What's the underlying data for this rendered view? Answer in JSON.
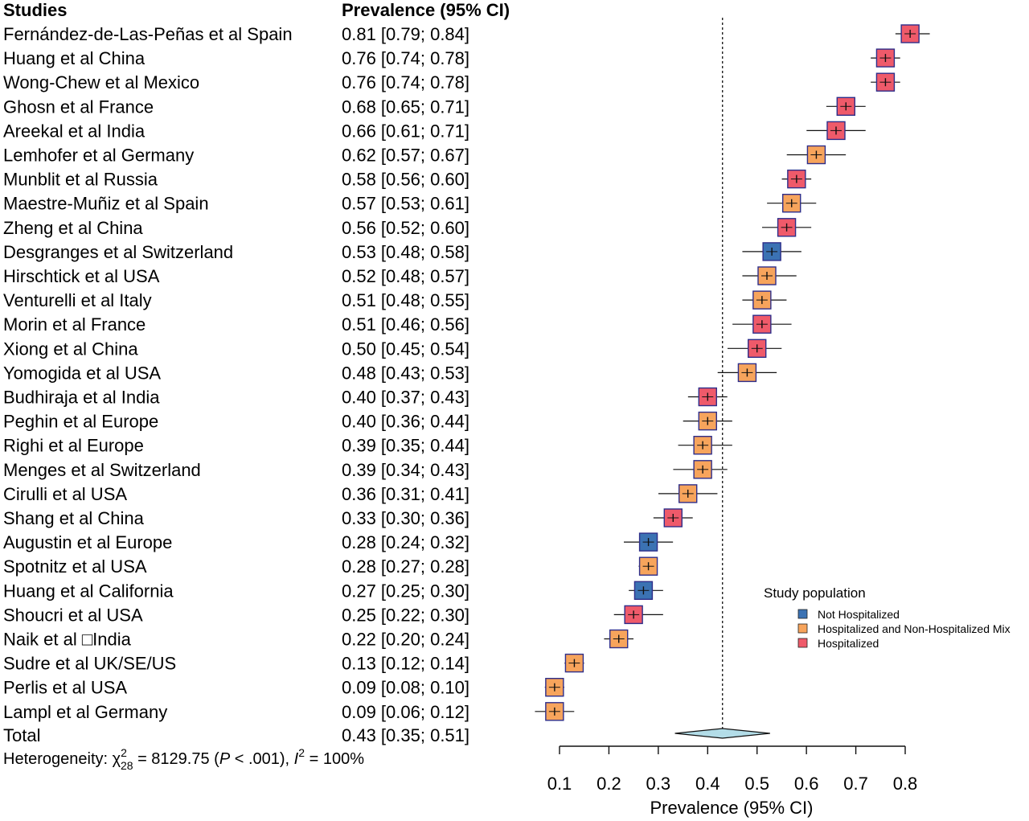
{
  "chart_data": {
    "type": "forest",
    "header": {
      "studies": "Studies",
      "estimate": "Prevalence (95% CI)"
    },
    "xlabel": "Prevalence (95% CI)",
    "xlim": [
      0.1,
      0.8
    ],
    "xticks": [
      "0.1",
      "0.2",
      "0.3",
      "0.4",
      "0.5",
      "0.6",
      "0.7",
      "0.8"
    ],
    "reference_line": 0.43,
    "legend": {
      "title": "Study population",
      "placement": "right",
      "items": [
        {
          "label": "Not Hospitalized",
          "color": "#3b72b3"
        },
        {
          "label": "Hospitalized and Non-Hospitalized Mix",
          "color": "#f7a45c"
        },
        {
          "label": "Hospitalized",
          "color": "#ef5a6a"
        }
      ]
    },
    "studies": [
      {
        "label": "Fernández-de-Las-Peñas et al Spain",
        "ci_text": "0.81 [0.79; 0.84]",
        "est": 0.81,
        "lo": 0.79,
        "hi": 0.84,
        "group": "Hospitalized"
      },
      {
        "label": "Huang et al China",
        "ci_text": "0.76 [0.74; 0.78]",
        "est": 0.76,
        "lo": 0.74,
        "hi": 0.78,
        "group": "Hospitalized"
      },
      {
        "label": "Wong-Chew et al Mexico",
        "ci_text": "0.76 [0.74; 0.78]",
        "est": 0.76,
        "lo": 0.74,
        "hi": 0.78,
        "group": "Hospitalized"
      },
      {
        "label": "Ghosn et al France",
        "ci_text": "0.68 [0.65; 0.71]",
        "est": 0.68,
        "lo": 0.65,
        "hi": 0.71,
        "group": "Hospitalized"
      },
      {
        "label": "Areekal et al India",
        "ci_text": "0.66 [0.61; 0.71]",
        "est": 0.66,
        "lo": 0.61,
        "hi": 0.71,
        "group": "Hospitalized"
      },
      {
        "label": "Lemhofer et al Germany",
        "ci_text": "0.62 [0.57; 0.67]",
        "est": 0.62,
        "lo": 0.57,
        "hi": 0.67,
        "group": "Hospitalized and Non-Hospitalized Mix"
      },
      {
        "label": "Munblit et al Russia",
        "ci_text": "0.58 [0.56; 0.60]",
        "est": 0.58,
        "lo": 0.56,
        "hi": 0.6,
        "group": "Hospitalized"
      },
      {
        "label": "Maestre-Muñiz et al Spain",
        "ci_text": "0.57 [0.53; 0.61]",
        "est": 0.57,
        "lo": 0.53,
        "hi": 0.61,
        "group": "Hospitalized and Non-Hospitalized Mix"
      },
      {
        "label": "Zheng et al China",
        "ci_text": "0.56 [0.52; 0.60]",
        "est": 0.56,
        "lo": 0.52,
        "hi": 0.6,
        "group": "Hospitalized"
      },
      {
        "label": "Desgranges et al Switzerland",
        "ci_text": "0.53 [0.48; 0.58]",
        "est": 0.53,
        "lo": 0.48,
        "hi": 0.58,
        "group": "Not Hospitalized"
      },
      {
        "label": "Hirschtick et al USA",
        "ci_text": "0.52 [0.48; 0.57]",
        "est": 0.52,
        "lo": 0.48,
        "hi": 0.57,
        "group": "Hospitalized and Non-Hospitalized Mix"
      },
      {
        "label": "Venturelli et al Italy",
        "ci_text": "0.51 [0.48; 0.55]",
        "est": 0.51,
        "lo": 0.48,
        "hi": 0.55,
        "group": "Hospitalized and Non-Hospitalized Mix"
      },
      {
        "label": "Morin et al France",
        "ci_text": "0.51 [0.46; 0.56]",
        "est": 0.51,
        "lo": 0.46,
        "hi": 0.56,
        "group": "Hospitalized"
      },
      {
        "label": "Xiong et al China",
        "ci_text": "0.50 [0.45; 0.54]",
        "est": 0.5,
        "lo": 0.45,
        "hi": 0.54,
        "group": "Hospitalized"
      },
      {
        "label": "Yomogida et al USA",
        "ci_text": "0.48 [0.43; 0.53]",
        "est": 0.48,
        "lo": 0.43,
        "hi": 0.53,
        "group": "Hospitalized and Non-Hospitalized Mix"
      },
      {
        "label": "Budhiraja et al India",
        "ci_text": "0.40 [0.37; 0.43]",
        "est": 0.4,
        "lo": 0.37,
        "hi": 0.43,
        "group": "Hospitalized"
      },
      {
        "label": "Peghin et al Europe",
        "ci_text": "0.40 [0.36; 0.44]",
        "est": 0.4,
        "lo": 0.36,
        "hi": 0.44,
        "group": "Hospitalized and Non-Hospitalized Mix"
      },
      {
        "label": "Righi et al Europe",
        "ci_text": "0.39 [0.35; 0.44]",
        "est": 0.39,
        "lo": 0.35,
        "hi": 0.44,
        "group": "Hospitalized and Non-Hospitalized Mix"
      },
      {
        "label": "Menges et al Switzerland",
        "ci_text": "0.39 [0.34; 0.43]",
        "est": 0.39,
        "lo": 0.34,
        "hi": 0.43,
        "group": "Hospitalized and Non-Hospitalized Mix"
      },
      {
        "label": "Cirulli et al USA",
        "ci_text": "0.36 [0.31; 0.41]",
        "est": 0.36,
        "lo": 0.31,
        "hi": 0.41,
        "group": "Hospitalized and Non-Hospitalized Mix"
      },
      {
        "label": "Shang et al China",
        "ci_text": "0.33 [0.30; 0.36]",
        "est": 0.33,
        "lo": 0.3,
        "hi": 0.36,
        "group": "Hospitalized"
      },
      {
        "label": "Augustin et al Europe",
        "ci_text": "0.28 [0.24; 0.32]",
        "est": 0.28,
        "lo": 0.24,
        "hi": 0.32,
        "group": "Not Hospitalized"
      },
      {
        "label": "Spotnitz et al USA",
        "ci_text": "0.28 [0.27; 0.28]",
        "est": 0.28,
        "lo": 0.27,
        "hi": 0.28,
        "group": "Hospitalized and Non-Hospitalized Mix"
      },
      {
        "label": "Huang et al California",
        "ci_text": "0.27 [0.25; 0.30]",
        "est": 0.27,
        "lo": 0.25,
        "hi": 0.3,
        "group": "Not Hospitalized"
      },
      {
        "label": "Shoucri et al USA",
        "ci_text": "0.25 [0.22; 0.30]",
        "est": 0.25,
        "lo": 0.22,
        "hi": 0.3,
        "group": "Hospitalized"
      },
      {
        "label": "Naik et al □India",
        "ci_text": "0.22 [0.20; 0.24]",
        "est": 0.22,
        "lo": 0.2,
        "hi": 0.24,
        "group": "Hospitalized and Non-Hospitalized Mix"
      },
      {
        "label": "Sudre et al UK/SE/US",
        "ci_text": "0.13 [0.12; 0.14]",
        "est": 0.13,
        "lo": 0.12,
        "hi": 0.14,
        "group": "Hospitalized and Non-Hospitalized Mix"
      },
      {
        "label": "Perlis et al USA",
        "ci_text": "0.09 [0.08; 0.10]",
        "est": 0.09,
        "lo": 0.08,
        "hi": 0.1,
        "group": "Hospitalized and Non-Hospitalized Mix"
      },
      {
        "label": "Lampl et al Germany",
        "ci_text": "0.09 [0.06; 0.12]",
        "est": 0.09,
        "lo": 0.06,
        "hi": 0.12,
        "group": "Hospitalized and Non-Hospitalized Mix"
      }
    ],
    "total": {
      "label": "Total",
      "ci_text": "0.43 [0.35; 0.51]",
      "est": 0.43,
      "lo": 0.35,
      "hi": 0.51,
      "color": "#b3dde8"
    },
    "heterogeneity": {
      "prefix": "Heterogeneity: ",
      "chi": "χ",
      "chi_sup": "2",
      "chi_sub": "28",
      "mid": " = 8129.75 (",
      "p": "P",
      "p_rest": " < .001), ",
      "i": "I",
      "i_sup": "2",
      "i_rest": " = 100%"
    }
  }
}
